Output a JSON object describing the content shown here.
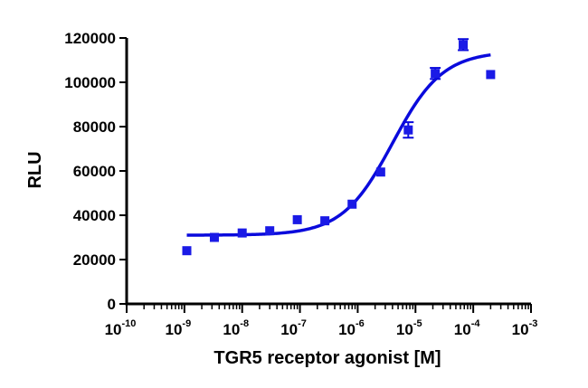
{
  "chart_data": {
    "type": "scatter",
    "title": "",
    "xlabel": "TGR5 receptor agonist [M]",
    "ylabel": "RLU",
    "x_scale": "log",
    "xlim": [
      1e-10,
      0.001
    ],
    "ylim": [
      0,
      120000
    ],
    "x_ticks": [
      {
        "base": "10",
        "exp": "-10",
        "value": 1e-10
      },
      {
        "base": "10",
        "exp": "-9",
        "value": 1e-09
      },
      {
        "base": "10",
        "exp": "-8",
        "value": 1e-08
      },
      {
        "base": "10",
        "exp": "-7",
        "value": 1e-07
      },
      {
        "base": "10",
        "exp": "-6",
        "value": 1e-06
      },
      {
        "base": "10",
        "exp": "-5",
        "value": 1e-05
      },
      {
        "base": "10",
        "exp": "-4",
        "value": 0.0001
      },
      {
        "base": "10",
        "exp": "-3",
        "value": 0.001
      }
    ],
    "y_ticks": [
      "0",
      "20000",
      "40000",
      "60000",
      "80000",
      "100000",
      "120000"
    ],
    "grid": false,
    "legend": "none",
    "series": [
      {
        "color": "#1a1ae6",
        "marker": "square",
        "points": [
          {
            "x": 1.1e-09,
            "y": 24000
          },
          {
            "x": 3.3e-09,
            "y": 30000
          },
          {
            "x": 1e-08,
            "y": 32000
          },
          {
            "x": 3e-08,
            "y": 33000
          },
          {
            "x": 9e-08,
            "y": 38000
          },
          {
            "x": 2.7e-07,
            "y": 37500
          },
          {
            "x": 8e-07,
            "y": 45000
          },
          {
            "x": 2.5e-06,
            "y": 59500
          },
          {
            "x": 7.5e-06,
            "y": 78500,
            "err": 3500
          },
          {
            "x": 2.2e-05,
            "y": 104000,
            "err": 2500
          },
          {
            "x": 6.7e-05,
            "y": 117000,
            "err": 2500
          },
          {
            "x": 0.0002,
            "y": 103500
          }
        ]
      }
    ],
    "fit": {
      "model": "sigmoidal dose-response",
      "bottom": 31000,
      "top": 114000,
      "ec50": 4e-06,
      "hill_slope": 1.0,
      "color": "#0a0adc"
    }
  }
}
